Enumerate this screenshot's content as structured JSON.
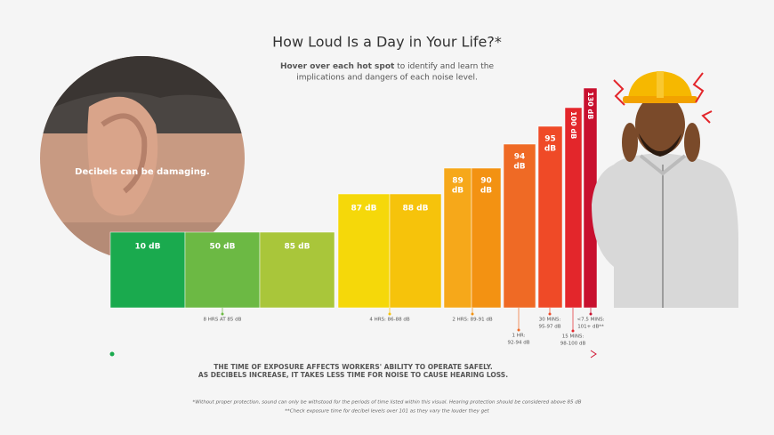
{
  "header": {
    "title": "How Loud Is a Day in Your Life?*",
    "subtitle_bold": "Hover over each hot spot",
    "subtitle_rest": "to identify and learn the",
    "subtitle_line2": "implications and dangers of each noise level."
  },
  "image_caption": "Decibels can be damaging.",
  "bars": [
    {
      "lines": [
        "10 dB"
      ]
    },
    {
      "lines": [
        "50 dB"
      ]
    },
    {
      "lines": [
        "85 dB"
      ]
    },
    {
      "lines": [
        "87 dB"
      ]
    },
    {
      "lines": [
        "88 dB"
      ]
    },
    {
      "lines": [
        "89",
        "dB"
      ]
    },
    {
      "lines": [
        "90",
        "dB"
      ]
    },
    {
      "lines": [
        "94",
        "dB"
      ]
    },
    {
      "lines": [
        "95",
        "dB"
      ]
    },
    {
      "lines": [
        "100 dB"
      ]
    },
    {
      "lines": [
        "130 dB"
      ]
    }
  ],
  "exposure_notes": [
    {
      "lines": [
        "8 HRS AT 85 dB"
      ]
    },
    {
      "lines": [
        "4 HRS: 86-88 dB"
      ]
    },
    {
      "lines": [
        "2 HRS: 89-91 dB"
      ]
    },
    {
      "lines": [
        "1 HR:",
        "92-94 dB"
      ]
    },
    {
      "lines": [
        "30 MINS:",
        "95-97 dB"
      ]
    },
    {
      "lines": [
        "15 MINS:",
        "98-100 dB"
      ]
    },
    {
      "lines": [
        "<7.5 MINS:",
        "101+ dB**"
      ]
    }
  ],
  "message": [
    "THE TIME OF EXPOSURE AFFECTS WORKERS' ABILITY TO OPERATE SAFELY.",
    "AS DECIBELS INCREASE, IT TAKES LESS TIME FOR NOISE TO CAUSE HEARING LOSS."
  ],
  "footnotes": [
    "*Without proper protection, sound can only be withstood for the periods of time listed within this visual. Hearing protection should be considered above 85 dB",
    "**Check exposure time for decibel levels over 101 as they vary the louder they get"
  ]
}
